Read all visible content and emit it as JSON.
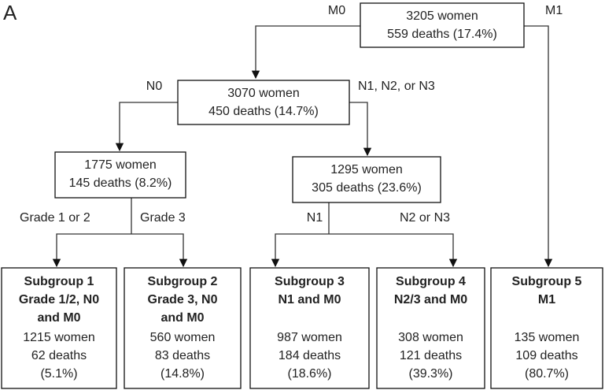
{
  "panel_label": "A",
  "nodes": [
    {
      "lines": [
        "3205 women",
        "559 deaths (17.4%)"
      ]
    },
    {
      "lines": [
        "3070 women",
        "450 deaths (14.7%)"
      ]
    },
    {
      "lines": [
        "1775 women",
        "145 deaths (8.2%)"
      ]
    },
    {
      "lines": [
        "1295 women",
        "305 deaths (23.6%)"
      ]
    }
  ],
  "subgroups": [
    {
      "title_lines": [
        "Subgroup 1",
        "Grade 1/2, N0",
        "and M0"
      ],
      "lines": [
        "1215 women",
        "62 deaths",
        "(5.1%)"
      ]
    },
    {
      "title_lines": [
        "Subgroup 2",
        "Grade 3, N0",
        "and M0"
      ],
      "lines": [
        "560 women",
        "83 deaths",
        "(14.8%)"
      ]
    },
    {
      "title_lines": [
        "Subgroup 3",
        "N1 and M0"
      ],
      "lines": [
        "987 women",
        "184 deaths",
        "(18.6%)"
      ]
    },
    {
      "title_lines": [
        "Subgroup 4",
        "N2/3 and M0"
      ],
      "lines": [
        "308 women",
        "121 deaths",
        "(39.3%)"
      ]
    },
    {
      "title_lines": [
        "Subgroup 5",
        "M1"
      ],
      "lines": [
        "135 women",
        "109 deaths",
        "(80.7%)"
      ]
    }
  ],
  "edge_labels": [
    "M0",
    "M1",
    "N0",
    "N1, N2, or N3",
    "Grade 1 or 2",
    "Grade 3",
    "N1",
    "N2 or N3"
  ]
}
